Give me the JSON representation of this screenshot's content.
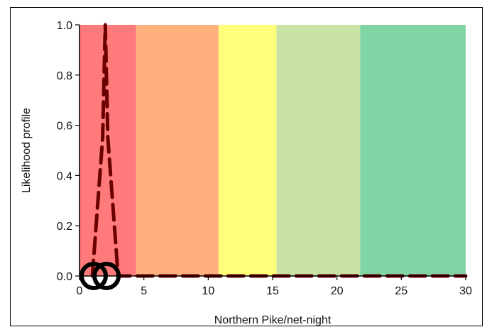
{
  "chart_data": {
    "type": "line",
    "xlabel": "Northern Pike/net-night",
    "ylabel": "Likelihood profile",
    "xlim": [
      0,
      30
    ],
    "ylim": [
      0,
      1
    ],
    "x_ticks": [
      "0",
      "5",
      "10",
      "15",
      "20",
      "25",
      "30"
    ],
    "y_ticks": [
      "0.0",
      "0.2",
      "0.4",
      "0.6",
      "0.8",
      "1.0"
    ],
    "grid": false,
    "bands": [
      {
        "from": 0,
        "to": 4.4,
        "color": "#ff7b7b"
      },
      {
        "from": 4.4,
        "to": 10.8,
        "color": "#ffb07d"
      },
      {
        "from": 10.8,
        "to": 15.3,
        "color": "#ffff7a"
      },
      {
        "from": 15.3,
        "to": 21.8,
        "color": "#c9e3a6"
      },
      {
        "from": 21.8,
        "to": 30,
        "color": "#80d5a5"
      }
    ],
    "series": [
      {
        "style": "dashed",
        "color": "#6b0000",
        "x": [
          1.0,
          1.8,
          2.0,
          2.2,
          3.0,
          30
        ],
        "y": [
          0.0,
          0.55,
          1.0,
          0.55,
          0.0,
          0.0
        ]
      },
      {
        "style": "markers",
        "marker": "open-circle",
        "color": "#000000",
        "x": [
          1.1,
          2.1
        ],
        "y": [
          0.0,
          0.0
        ]
      }
    ]
  }
}
